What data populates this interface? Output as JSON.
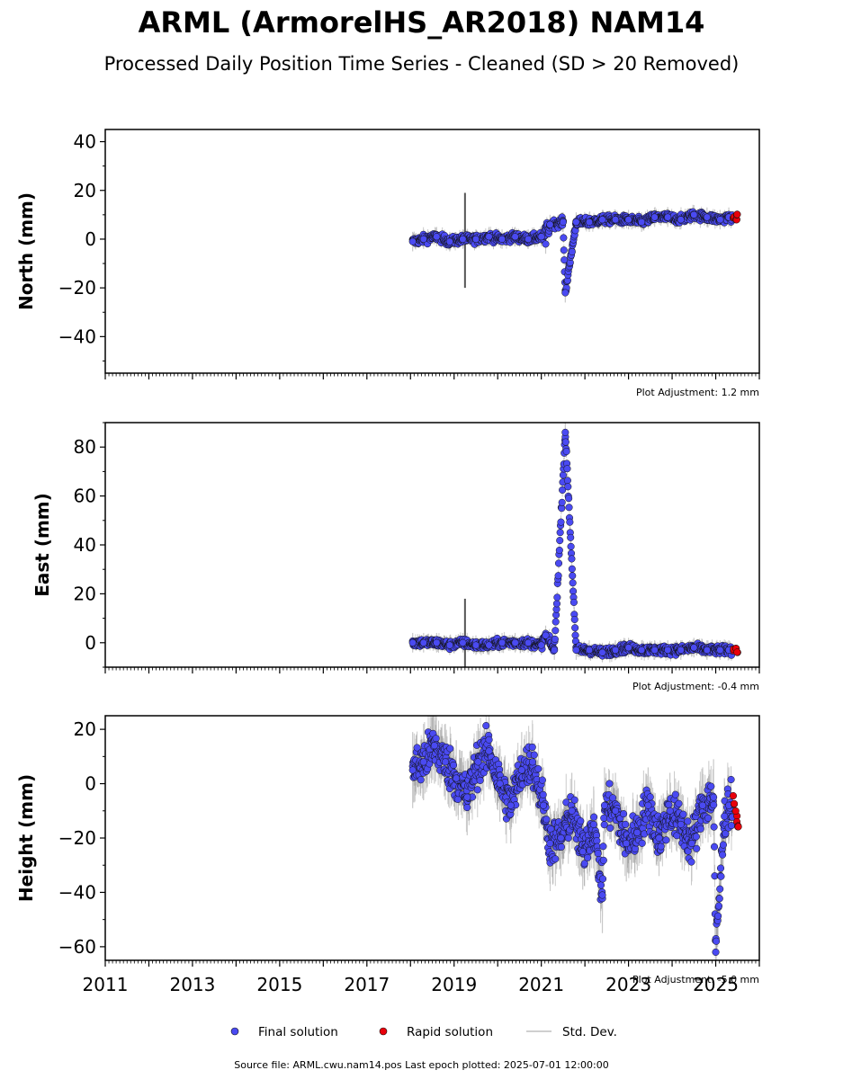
{
  "title": "ARML (ArmorelHS_AR2018) NAM14",
  "subtitle": "Processed Daily Position Time Series - Cleaned (SD > 20 Removed)",
  "footer": "Source file: ARML.cwu.nam14.pos  Last epoch plotted: 2025-07-01 12:00:00",
  "legend": {
    "final": "Final solution",
    "rapid": "Rapid solution",
    "sd": "Std. Dev."
  },
  "colors": {
    "final": "#4a4af2",
    "rapid": "#e8000b",
    "sd": "#c8c8c8"
  },
  "chart_data": [
    {
      "type": "scatter",
      "ylabel": "North (mm)",
      "note": "Plot Adjustment: 1.2 mm",
      "xlim": [
        2011.0,
        2026.0
      ],
      "ylim": [
        -55,
        45
      ],
      "yticks": [
        40,
        20,
        0,
        -20,
        -40
      ],
      "series": [
        {
          "name": "Final solution",
          "points": [
            [
              2018.05,
              -1
            ],
            [
              2018.3,
              0
            ],
            [
              2018.6,
              1
            ],
            [
              2018.9,
              -1
            ],
            [
              2019.2,
              0
            ],
            [
              2019.5,
              0
            ],
            [
              2019.8,
              1
            ],
            [
              2020.1,
              0
            ],
            [
              2020.4,
              1
            ],
            [
              2020.7,
              0
            ],
            [
              2021.0,
              1
            ],
            [
              2021.1,
              -2
            ],
            [
              2021.2,
              6
            ],
            [
              2021.5,
              7
            ],
            [
              2021.55,
              -22
            ],
            [
              2021.8,
              7
            ],
            [
              2022.1,
              7
            ],
            [
              2022.4,
              8
            ],
            [
              2022.7,
              8
            ],
            [
              2023.0,
              8
            ],
            [
              2023.3,
              7
            ],
            [
              2023.6,
              9
            ],
            [
              2023.9,
              9
            ],
            [
              2024.2,
              8
            ],
            [
              2024.5,
              10
            ],
            [
              2024.8,
              9
            ],
            [
              2025.1,
              8
            ],
            [
              2025.3,
              9
            ]
          ]
        },
        {
          "name": "Rapid solution",
          "points": [
            [
              2025.4,
              9
            ],
            [
              2025.45,
              8
            ],
            [
              2025.48,
              10
            ]
          ]
        }
      ],
      "annotations": [
        {
          "x": 2019.25,
          "low": -20,
          "high": 19
        }
      ]
    },
    {
      "type": "scatter",
      "ylabel": "East (mm)",
      "note": "Plot Adjustment: -0.4 mm",
      "xlim": [
        2011.0,
        2026.0
      ],
      "ylim": [
        -10,
        90
      ],
      "yticks": [
        80,
        60,
        40,
        20,
        0
      ],
      "series": [
        {
          "name": "Final solution",
          "points": [
            [
              2018.05,
              0
            ],
            [
              2018.3,
              0
            ],
            [
              2018.6,
              0
            ],
            [
              2018.9,
              -1
            ],
            [
              2019.2,
              0
            ],
            [
              2019.5,
              -1
            ],
            [
              2019.8,
              -1
            ],
            [
              2020.1,
              0
            ],
            [
              2020.4,
              0
            ],
            [
              2020.7,
              0
            ],
            [
              2021.0,
              -1
            ],
            [
              2021.1,
              3
            ],
            [
              2021.3,
              -3
            ],
            [
              2021.55,
              86
            ],
            [
              2021.8,
              -3
            ],
            [
              2022.1,
              -3
            ],
            [
              2022.4,
              -4
            ],
            [
              2022.7,
              -3
            ],
            [
              2023.0,
              -2
            ],
            [
              2023.3,
              -3
            ],
            [
              2023.6,
              -3
            ],
            [
              2023.9,
              -3
            ],
            [
              2024.2,
              -3
            ],
            [
              2024.5,
              -2
            ],
            [
              2024.8,
              -3
            ],
            [
              2025.1,
              -3
            ],
            [
              2025.3,
              -3
            ]
          ]
        },
        {
          "name": "Rapid solution",
          "points": [
            [
              2025.4,
              -3
            ],
            [
              2025.45,
              -2
            ],
            [
              2025.48,
              -4
            ]
          ]
        }
      ],
      "annotations": [
        {
          "x": 2019.25,
          "low": -10,
          "high": 18
        }
      ]
    },
    {
      "type": "scatter",
      "ylabel": "Height (mm)",
      "note": "Plot Adjustment: -5.0 mm",
      "xlim": [
        2011.0,
        2026.0
      ],
      "ylim": [
        -65,
        25
      ],
      "yticks": [
        20,
        0,
        -20,
        -40,
        -60
      ],
      "xticks": [
        "2011",
        "2013",
        "2015",
        "2017",
        "2019",
        "2021",
        "2023",
        "2025"
      ],
      "series": [
        {
          "name": "Final solution",
          "points": [
            [
              2018.05,
              5
            ],
            [
              2018.3,
              8
            ],
            [
              2018.55,
              14
            ],
            [
              2018.8,
              8
            ],
            [
              2019.05,
              2
            ],
            [
              2019.3,
              -5
            ],
            [
              2019.55,
              8
            ],
            [
              2019.8,
              12
            ],
            [
              2020.05,
              0
            ],
            [
              2020.3,
              -8
            ],
            [
              2020.55,
              5
            ],
            [
              2020.8,
              8
            ],
            [
              2021.05,
              -8
            ],
            [
              2021.2,
              -22
            ],
            [
              2021.45,
              -20
            ],
            [
              2021.7,
              -10
            ],
            [
              2021.95,
              -25
            ],
            [
              2022.2,
              -15
            ],
            [
              2022.4,
              -41
            ],
            [
              2022.45,
              -8
            ],
            [
              2022.7,
              -10
            ],
            [
              2022.95,
              -22
            ],
            [
              2023.2,
              -18
            ],
            [
              2023.45,
              -8
            ],
            [
              2023.7,
              -20
            ],
            [
              2023.95,
              -10
            ],
            [
              2024.2,
              -15
            ],
            [
              2024.45,
              -22
            ],
            [
              2024.7,
              -8
            ],
            [
              2024.95,
              -5
            ],
            [
              2025.0,
              -62
            ],
            [
              2025.2,
              -12
            ],
            [
              2025.3,
              -8
            ]
          ]
        },
        {
          "name": "Rapid solution",
          "points": [
            [
              2025.4,
              -5
            ],
            [
              2025.45,
              -12
            ],
            [
              2025.48,
              -16
            ]
          ]
        }
      ]
    }
  ]
}
